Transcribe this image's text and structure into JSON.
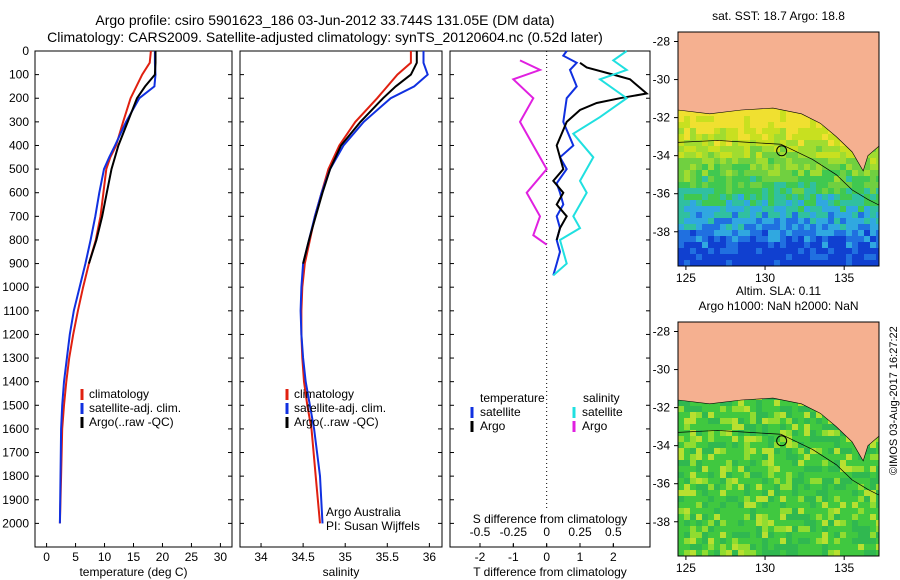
{
  "header": {
    "title_line1": "Argo profile: csiro 5901623_186 03-Jun-2012 33.744S 131.05E (DM data)",
    "title_line2": "Climatology: CARS2009. Satellite-adjusted climatology: synTS_20120604.nc (0.52d later)"
  },
  "watermark": "©IMOS 03-Aug-2017 16:27:22",
  "colors": {
    "climatology": "#e02010",
    "satellite": "#1030e0",
    "argo": "#000000",
    "sal_satellite": "#20e0e0",
    "sal_argo": "#e020e0",
    "land": "#f5b090"
  },
  "chart_data": [
    {
      "type": "line",
      "id": "temperature",
      "xlabel": "temperature (deg C)",
      "xlim": [
        -2,
        32
      ],
      "xticks": [
        "0",
        "5",
        "10",
        "15",
        "20",
        "25",
        "30"
      ],
      "ylim": [
        0,
        2100
      ],
      "yticks": [
        "0",
        "100",
        "200",
        "300",
        "400",
        "500",
        "600",
        "700",
        "800",
        "900",
        "1000",
        "1100",
        "1200",
        "1300",
        "1400",
        "1500",
        "1600",
        "1700",
        "1800",
        "1900",
        "2000"
      ],
      "legend": [
        "climatology",
        "satellite-adj. clim.",
        "Argo(..raw -QC)"
      ],
      "legend_position": "lower-right",
      "series": [
        {
          "name": "climatology",
          "color": "#e02010",
          "x": [
            18,
            17.8,
            16.5,
            14.5,
            13.2,
            12.0,
            11.0,
            10.3,
            9.8,
            9.3,
            8.5,
            7.3,
            6.3,
            5.4,
            4.6,
            3.9,
            3.4,
            3.0,
            2.7,
            2.5,
            2.3
          ],
          "y": [
            0,
            50,
            100,
            200,
            300,
            400,
            450,
            500,
            600,
            700,
            800,
            900,
            1000,
            1100,
            1200,
            1300,
            1400,
            1500,
            1600,
            1800,
            2000
          ]
        },
        {
          "name": "satellite-adj. clim.",
          "color": "#1030e0",
          "x": [
            18.7,
            18.7,
            18.8,
            18.6,
            16.0,
            13.7,
            11.8,
            10.8,
            9.9,
            9.1,
            8.4,
            7.6,
            6.7,
            5.7,
            4.7,
            4.0,
            3.5,
            3.0,
            2.7,
            2.5,
            2.4,
            2.3
          ],
          "y": [
            0,
            50,
            100,
            150,
            200,
            300,
            400,
            450,
            500,
            600,
            700,
            800,
            900,
            1000,
            1100,
            1200,
            1300,
            1400,
            1500,
            1600,
            1800,
            2000
          ]
        },
        {
          "name": "Argo(..raw -QC)",
          "color": "#000000",
          "x": [
            18.8,
            18.8,
            18.7,
            17.0,
            15.6,
            14.0,
            12.4,
            11.2,
            10.4,
            9.6,
            8.6,
            7.3
          ],
          "y": [
            0,
            50,
            100,
            150,
            200,
            300,
            400,
            500,
            600,
            700,
            800,
            900
          ]
        }
      ]
    },
    {
      "type": "line",
      "id": "salinity",
      "xlabel": "salinity",
      "xlim": [
        33.75,
        36.15
      ],
      "xticks": [
        "34",
        "34.5",
        "35",
        "35.5",
        "36"
      ],
      "ylim": [
        0,
        2100
      ],
      "legend": [
        "climatology",
        "satellite-adj. clim.",
        "Argo(..raw -QC)"
      ],
      "legend_position": "lower-right",
      "annotation": [
        "Argo Australia",
        "PI: Susan Wijffels"
      ],
      "series": [
        {
          "name": "climatology",
          "color": "#e02010",
          "x": [
            35.78,
            35.78,
            35.62,
            35.38,
            35.12,
            34.93,
            34.8,
            34.72,
            34.64,
            34.58,
            34.52,
            34.49,
            34.48,
            34.48,
            34.49,
            34.51,
            34.55,
            34.6,
            34.65,
            34.7
          ],
          "y": [
            0,
            50,
            100,
            200,
            300,
            400,
            500,
            600,
            700,
            800,
            900,
            1000,
            1100,
            1200,
            1300,
            1400,
            1500,
            1600,
            1800,
            2000
          ]
        },
        {
          "name": "satellite-adj. clim.",
          "color": "#1030e0",
          "x": [
            35.93,
            35.93,
            35.98,
            35.82,
            35.54,
            35.22,
            34.98,
            34.82,
            34.72,
            34.64,
            34.57,
            34.5,
            34.48,
            34.47,
            34.48,
            34.5,
            34.53,
            34.58,
            34.63,
            34.7,
            34.73
          ],
          "y": [
            0,
            50,
            100,
            150,
            200,
            300,
            400,
            500,
            600,
            700,
            800,
            900,
            1000,
            1100,
            1200,
            1300,
            1400,
            1500,
            1600,
            1800,
            2000
          ]
        },
        {
          "name": "Argo(..raw -QC)",
          "color": "#000000",
          "x": [
            35.85,
            35.85,
            35.78,
            35.6,
            35.45,
            35.18,
            34.95,
            34.82,
            34.73,
            34.65,
            34.57,
            34.5
          ],
          "y": [
            0,
            50,
            100,
            150,
            200,
            300,
            400,
            500,
            600,
            700,
            800,
            900
          ]
        }
      ]
    },
    {
      "type": "line",
      "id": "difference",
      "xlabel": "T difference from climatology",
      "xlabel_top": "S difference from climatology",
      "xlim": [
        -2.9,
        3.1
      ],
      "xticks": [
        "-2",
        "-1",
        "0",
        "1",
        "2"
      ],
      "xticks_top": [
        "-0.5",
        "-0.25",
        "0",
        "0.25",
        "0.5"
      ],
      "ylim": [
        0,
        2100
      ],
      "legend": [
        "temperature",
        "satellite",
        "Argo",
        "salinity",
        "satellite",
        "Argo"
      ],
      "legend_position": "lower-center",
      "series": [
        {
          "name": "satellite",
          "quantity": "temperature",
          "color": "#1030e0",
          "x": [
            0.6,
            0.5,
            0.9,
            0.7,
            0.9,
            0.6,
            0.5,
            0.8,
            0.4,
            0.6,
            0.3,
            0.4,
            0.5,
            0.3,
            0.4,
            0.3,
            0.4,
            0.3,
            0.2
          ],
          "y": [
            0,
            20,
            50,
            80,
            150,
            200,
            300,
            400,
            450,
            500,
            560,
            600,
            650,
            700,
            750,
            800,
            850,
            900,
            950
          ]
        },
        {
          "name": "Argo",
          "quantity": "temperature",
          "color": "#000000",
          "x": [
            1.0,
            1.2,
            2.0,
            2.5,
            3.0,
            2.2,
            1.5,
            1.0,
            0.6,
            0.3,
            0.5,
            0.2,
            0.5,
            0.3,
            0.6,
            0.4,
            0.3
          ],
          "y": [
            50,
            70,
            100,
            120,
            180,
            200,
            220,
            250,
            300,
            400,
            500,
            550,
            600,
            650,
            700,
            750,
            800
          ]
        },
        {
          "name": "satellite",
          "quantity": "salinity",
          "color": "#20e0e0",
          "x": [
            0.6,
            0.5,
            0.6,
            0.4,
            0.6,
            0.4,
            0.2,
            0.35,
            0.25,
            0.3,
            0.2,
            0.25,
            0.1,
            0.15,
            0.05
          ],
          "y": [
            0,
            40,
            80,
            120,
            200,
            280,
            350,
            450,
            550,
            600,
            700,
            750,
            800,
            900,
            950
          ]
        },
        {
          "name": "Argo",
          "quantity": "salinity",
          "color": "#e020e0",
          "x": [
            -0.2,
            -0.05,
            -0.25,
            -0.1,
            -0.2,
            -0.1,
            0.0,
            -0.15,
            -0.05,
            -0.1,
            0.0
          ],
          "y": [
            40,
            80,
            120,
            200,
            300,
            400,
            500,
            600,
            700,
            780,
            820
          ]
        }
      ]
    },
    {
      "type": "heatmap",
      "id": "sst-map",
      "title": "sat. SST: 18.7 Argo: 18.8",
      "xticks": [
        "125",
        "130",
        "135"
      ],
      "yticks": [
        "-28",
        "-30",
        "-32",
        "-34",
        "-36",
        "-38"
      ],
      "xlim": [
        124.5,
        137.2
      ],
      "ylim": [
        -39.8,
        -27.5
      ],
      "argo_position": [
        131.05,
        -33.744
      ]
    },
    {
      "type": "heatmap",
      "id": "sla-map",
      "title_lines": [
        "Altim. SLA: 0.11",
        "Argo h1000: NaN h2000: NaN"
      ],
      "xticks": [
        "125",
        "130",
        "135"
      ],
      "yticks": [
        "-28",
        "-30",
        "-32",
        "-34",
        "-36",
        "-38"
      ],
      "xlim": [
        124.5,
        137.2
      ],
      "ylim": [
        -39.8,
        -27.5
      ],
      "argo_position": [
        131.05,
        -33.744
      ]
    }
  ]
}
